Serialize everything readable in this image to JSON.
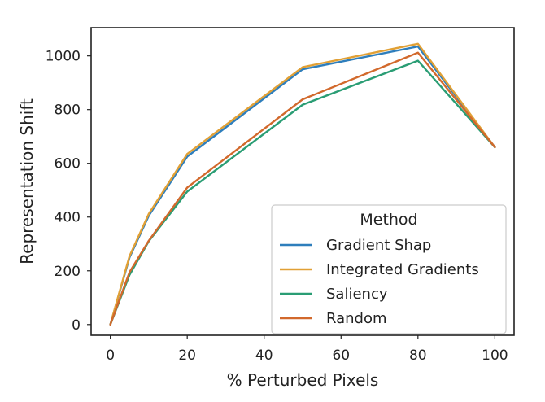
{
  "chart_data": {
    "type": "line",
    "title": "",
    "xlabel": "% Perturbed Pixels",
    "ylabel": "Representation Shift",
    "xlim": [
      -5,
      105
    ],
    "ylim": [
      -40,
      1105
    ],
    "xticks": [
      0,
      20,
      40,
      60,
      80,
      100
    ],
    "yticks": [
      0,
      200,
      400,
      600,
      800,
      1000
    ],
    "grid": false,
    "legend": {
      "title": "Method",
      "placement": "lower-right"
    },
    "x": [
      0,
      5,
      10,
      20,
      50,
      80,
      100
    ],
    "series": [
      {
        "name": "Gradient Shap",
        "color": "#2e7ebc",
        "values": [
          0,
          250,
          405,
          625,
          950,
          1035,
          660
        ]
      },
      {
        "name": "Integrated Gradients",
        "color": "#e1a035",
        "values": [
          0,
          255,
          412,
          635,
          958,
          1045,
          660
        ]
      },
      {
        "name": "Saliency",
        "color": "#2a9d74",
        "values": [
          0,
          185,
          310,
          495,
          818,
          982,
          660
        ]
      },
      {
        "name": "Random",
        "color": "#d2692c",
        "values": [
          0,
          195,
          312,
          510,
          838,
          1012,
          660
        ]
      }
    ]
  }
}
